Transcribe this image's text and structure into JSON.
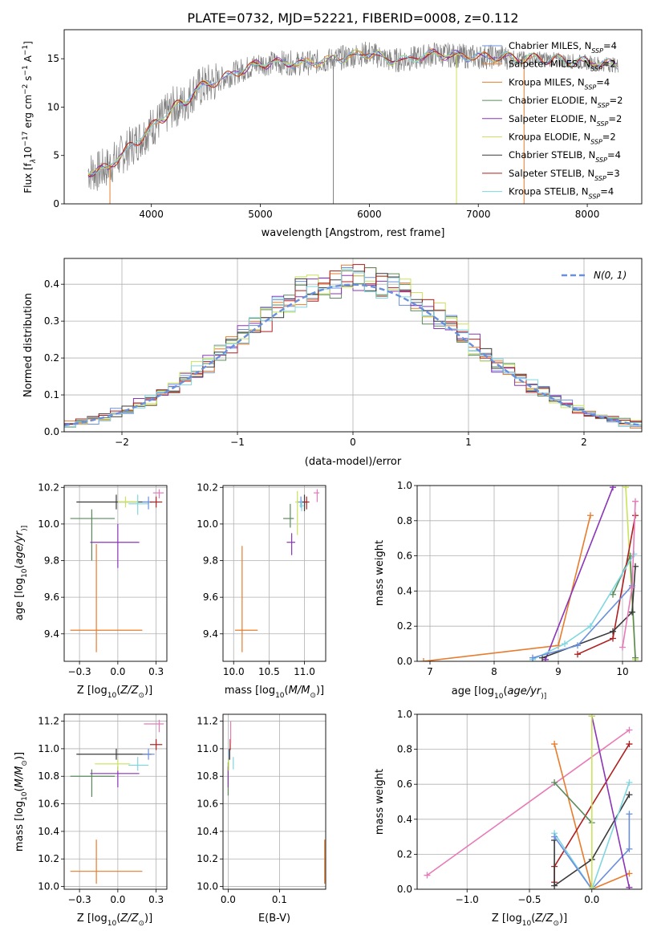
{
  "title": "PLATE=0732, MJD=52221, FIBERID=0008, z=0.112",
  "colors": {
    "cm": "#6a8fdc",
    "sm": "#e87b2c",
    "km": "#e87b2c",
    "ce": "#5a8a5a",
    "se": "#8b35b8",
    "ke": "#c9e35a",
    "cs": "#3a3a3a",
    "ss": "#b01f1f",
    "ks": "#7fd6e0",
    "data": "#808080",
    "pink": "#e87ab8",
    "gauss": "#6a8fdc"
  },
  "chart_data": [
    {
      "type": "line",
      "id": "spectrum",
      "xlabel": "wavelength [Angstrom, rest frame]",
      "ylabel": "Flux [f$_\\lambda$10$^{-17}$ erg cm$^{-2}$ s$^{-1}$ A$^{-1}$]",
      "xlim": [
        3200,
        8500
      ],
      "ylim": [
        0,
        18
      ],
      "xticks": [
        4000,
        5000,
        6000,
        7000,
        8000
      ],
      "yticks": [
        0,
        5,
        10,
        15
      ],
      "legend_position": "upper right",
      "legend": [
        {
          "label": "Chabrier MILES, N",
          "sub": "SSP",
          "tail": "=4",
          "color": "cm"
        },
        {
          "label": "Salpeter MILES, N",
          "sub": "SSP",
          "tail": "=2",
          "color": "sm"
        },
        {
          "label": "Kroupa MILES, N",
          "sub": "SSP",
          "tail": "=4",
          "color": "km"
        },
        {
          "label": "Chabrier ELODIE, N",
          "sub": "SSP",
          "tail": "=2",
          "color": "ce"
        },
        {
          "label": "Salpeter ELODIE, N",
          "sub": "SSP",
          "tail": "=2",
          "color": "se"
        },
        {
          "label": "Kroupa ELODIE, N",
          "sub": "SSP",
          "tail": "=2",
          "color": "ke"
        },
        {
          "label": "Chabrier STELIB, N",
          "sub": "SSP",
          "tail": "=4",
          "color": "cs"
        },
        {
          "label": "Salpeter STELIB, N",
          "sub": "SSP",
          "tail": "=3",
          "color": "ss"
        },
        {
          "label": "Kroupa STELIB, N",
          "sub": "SSP",
          "tail": "=4",
          "color": "ks"
        }
      ],
      "continuum": [
        [
          3400,
          3.4
        ],
        [
          3500,
          3.3
        ],
        [
          3600,
          3.8
        ],
        [
          3700,
          4.8
        ],
        [
          3800,
          5.8
        ],
        [
          3900,
          6.8
        ],
        [
          4000,
          7.9
        ],
        [
          4100,
          8.8
        ],
        [
          4200,
          10.0
        ],
        [
          4300,
          10.3
        ],
        [
          4400,
          11.8
        ],
        [
          4600,
          12.7
        ],
        [
          4800,
          13.7
        ],
        [
          5000,
          14.5
        ],
        [
          5200,
          14.6
        ],
        [
          5400,
          14.5
        ],
        [
          5600,
          14.8
        ],
        [
          5800,
          15.2
        ],
        [
          6000,
          15.6
        ],
        [
          6200,
          14.8
        ],
        [
          6400,
          15.0
        ],
        [
          6600,
          15.5
        ],
        [
          6800,
          15.3
        ],
        [
          7000,
          15.2
        ],
        [
          7200,
          15.2
        ],
        [
          7400,
          15.0
        ],
        [
          7600,
          15.0
        ],
        [
          7800,
          14.8
        ],
        [
          8000,
          14.6
        ],
        [
          8200,
          14.4
        ],
        [
          8300,
          14.3
        ]
      ]
    },
    {
      "type": "histogram",
      "id": "residuals",
      "xlabel": "(data-model)/error",
      "ylabel": "Normed distribution",
      "xlim": [
        -2.5,
        2.5
      ],
      "ylim": [
        0,
        0.47
      ],
      "xticks": [
        -2,
        -1,
        0,
        1,
        2
      ],
      "yticks": [
        0,
        0.1,
        0.2,
        0.3,
        0.4
      ],
      "bin_width": 0.1,
      "gaussian_label": "N(0,1)",
      "gaussian_mean": 0,
      "gaussian_sigma": 1,
      "legend_position": "upper right"
    },
    {
      "type": "scatter",
      "id": "age_vs_Z",
      "xlabel_parts": [
        "Z [log",
        "10",
        "(",
        "Z/Z",
        "⊙",
        ")]"
      ],
      "ylabel_parts": [
        "age  [log",
        "10",
        "(",
        "age/yr",
        ")]"
      ],
      "xlim": [
        -0.35,
        0.32
      ],
      "ylim": [
        9.25,
        10.21
      ],
      "xticks": [
        -0.25,
        0.0,
        0.25
      ],
      "yticks": [
        9.4,
        9.6,
        9.8,
        10.0,
        10.2
      ],
      "points": [
        {
          "x": -0.17,
          "y": 10.03,
          "xerr": [
            0.14,
            0.15
          ],
          "yerr": [
            0.23,
            0.05
          ],
          "color": "ce"
        },
        {
          "x": -0.01,
          "y": 10.12,
          "xerr": [
            0.26,
            0.23
          ],
          "yerr": [
            0.04,
            0.04
          ],
          "color": "cs"
        },
        {
          "x": 0.0,
          "y": 9.9,
          "xerr": [
            0.18,
            0.14
          ],
          "yerr": [
            0.14,
            0.1
          ],
          "color": "se"
        },
        {
          "x": -0.14,
          "y": 9.42,
          "xerr": [
            0.17,
            0.3
          ],
          "yerr": [
            0.12,
            0.47
          ],
          "color": "km"
        },
        {
          "x": 0.05,
          "y": 10.12,
          "xerr": [
            0.05,
            0.08
          ],
          "yerr": [
            0.03,
            0.03
          ],
          "color": "ke"
        },
        {
          "x": 0.13,
          "y": 10.11,
          "xerr": [
            0.06,
            0.07
          ],
          "yerr": [
            0.06,
            0.05
          ],
          "color": "ks"
        },
        {
          "x": 0.2,
          "y": 10.12,
          "xerr": [
            0.04,
            0.04
          ],
          "yerr": [
            0.04,
            0.03
          ],
          "color": "cm"
        },
        {
          "x": 0.25,
          "y": 10.12,
          "xerr": [
            0.04,
            0.04
          ],
          "yerr": [
            0.03,
            0.03
          ],
          "color": "ss"
        },
        {
          "x": 0.27,
          "y": 10.17,
          "xerr": [
            0.04,
            0.03
          ],
          "yerr": [
            0.03,
            0.02
          ],
          "color": "pink"
        }
      ]
    },
    {
      "type": "scatter",
      "id": "age_vs_mass",
      "xlabel_parts": [
        "mass [log",
        "10",
        "(",
        "M/M",
        "⊙",
        ")]"
      ],
      "ylabel_parts": [],
      "xlim": [
        9.85,
        11.3
      ],
      "ylim": [
        9.25,
        10.21
      ],
      "xticks": [
        10.0,
        10.5,
        11.0
      ],
      "yticks": [
        9.4,
        9.6,
        9.8,
        10.0,
        10.2
      ],
      "points": [
        {
          "x": 10.8,
          "y": 10.03,
          "xerr": [
            0.1,
            0.05
          ],
          "yerr": [
            0.05,
            0.08
          ],
          "color": "ce"
        },
        {
          "x": 10.82,
          "y": 9.9,
          "xerr": [
            0.07,
            0.05
          ],
          "yerr": [
            0.07,
            0.05
          ],
          "color": "se"
        },
        {
          "x": 10.9,
          "y": 10.12,
          "xerr": [
            0.03,
            0.03
          ],
          "yerr": [
            0.18,
            0.06
          ],
          "color": "ke"
        },
        {
          "x": 10.12,
          "y": 9.42,
          "xerr": [
            0.1,
            0.22
          ],
          "yerr": [
            0.12,
            0.46
          ],
          "color": "km"
        },
        {
          "x": 10.95,
          "y": 10.12,
          "xerr": [
            0.04,
            0.04
          ],
          "yerr": [
            0.03,
            0.03
          ],
          "color": "cm"
        },
        {
          "x": 11.0,
          "y": 10.12,
          "xerr": [
            0.04,
            0.04
          ],
          "yerr": [
            0.05,
            0.04
          ],
          "color": "cs"
        },
        {
          "x": 10.96,
          "y": 10.1,
          "xerr": [
            0.03,
            0.03
          ],
          "yerr": [
            0.03,
            0.03
          ],
          "color": "ks"
        },
        {
          "x": 11.03,
          "y": 10.12,
          "xerr": [
            0.04,
            0.04
          ],
          "yerr": [
            0.04,
            0.03
          ],
          "color": "ss"
        },
        {
          "x": 11.18,
          "y": 10.17,
          "xerr": [
            0.05,
            0.03
          ],
          "yerr": [
            0.05,
            0.02
          ],
          "color": "pink"
        }
      ]
    },
    {
      "type": "line",
      "id": "weight_vs_age",
      "xlabel_parts": [
        "age  [log",
        "10",
        "(",
        "age/yr",
        ")]"
      ],
      "ylabel": "mass weight",
      "xlim": [
        6.8,
        10.3
      ],
      "ylim": [
        0,
        1
      ],
      "xticks": [
        7,
        8,
        9,
        10
      ],
      "yticks": [
        0,
        0.2,
        0.4,
        0.6,
        0.8,
        1.0
      ],
      "series": [
        {
          "color": "km",
          "x": [
            6.9,
            9.0,
            9.5
          ],
          "y": [
            0.0,
            0.09,
            0.83
          ]
        },
        {
          "color": "se",
          "x": [
            8.8,
            9.85
          ],
          "y": [
            0.01,
            0.99
          ]
        },
        {
          "color": "ke",
          "x": [
            10.05,
            10.2
          ],
          "y": [
            0.99,
            0.01
          ]
        },
        {
          "color": "ce",
          "x": [
            9.85,
            10.12,
            10.2
          ],
          "y": [
            0.38,
            0.6,
            0.02
          ]
        },
        {
          "color": "ss",
          "x": [
            9.3,
            9.85,
            10.2
          ],
          "y": [
            0.04,
            0.13,
            0.83
          ]
        },
        {
          "color": "cs",
          "x": [
            8.75,
            9.85,
            10.15,
            10.2
          ],
          "y": [
            0.02,
            0.17,
            0.28,
            0.54
          ]
        },
        {
          "color": "ks",
          "x": [
            8.6,
            9.1,
            9.5,
            10.18
          ],
          "y": [
            0.01,
            0.1,
            0.2,
            0.61
          ]
        },
        {
          "color": "cm",
          "x": [
            8.6,
            9.3,
            10.15
          ],
          "y": [
            0.02,
            0.09,
            0.43
          ]
        },
        {
          "color": "pink",
          "x": [
            10.0,
            10.15,
            10.2
          ],
          "y": [
            0.08,
            0.42,
            0.91
          ]
        }
      ]
    },
    {
      "type": "scatter",
      "id": "mass_vs_Z",
      "xlabel_parts": [
        "Z [log",
        "10",
        "(",
        "Z/Z",
        "⊙",
        ")]"
      ],
      "ylabel_parts": [
        "mass [log",
        "10",
        "(",
        "M/M",
        "⊙",
        ")]"
      ],
      "xlim": [
        -0.35,
        0.32
      ],
      "ylim": [
        9.98,
        11.25
      ],
      "xticks": [
        -0.25,
        0.0,
        0.25
      ],
      "yticks": [
        10.0,
        10.2,
        10.4,
        10.6,
        10.8,
        11.0,
        11.2
      ],
      "points": [
        {
          "x": -0.17,
          "y": 10.8,
          "xerr": [
            0.14,
            0.15
          ],
          "yerr": [
            0.15,
            0.05
          ],
          "color": "ce"
        },
        {
          "x": -0.01,
          "y": 10.96,
          "xerr": [
            0.26,
            0.23
          ],
          "yerr": [
            0.04,
            0.04
          ],
          "color": "cs"
        },
        {
          "x": 0.0,
          "y": 10.82,
          "xerr": [
            0.18,
            0.14
          ],
          "yerr": [
            0.1,
            0.05
          ],
          "color": "se"
        },
        {
          "x": 0.0,
          "y": 10.89,
          "xerr": [
            0.15,
            0.08
          ],
          "yerr": [
            0.05,
            0.03
          ],
          "color": "ke"
        },
        {
          "x": -0.14,
          "y": 10.11,
          "xerr": [
            0.17,
            0.3
          ],
          "yerr": [
            0.09,
            0.23
          ],
          "color": "km"
        },
        {
          "x": 0.13,
          "y": 10.88,
          "xerr": [
            0.06,
            0.07
          ],
          "yerr": [
            0.04,
            0.06
          ],
          "color": "ks"
        },
        {
          "x": 0.2,
          "y": 10.96,
          "xerr": [
            0.04,
            0.04
          ],
          "yerr": [
            0.04,
            0.04
          ],
          "color": "cm"
        },
        {
          "x": 0.25,
          "y": 11.03,
          "xerr": [
            0.04,
            0.04
          ],
          "yerr": [
            0.04,
            0.04
          ],
          "color": "ss"
        },
        {
          "x": 0.27,
          "y": 11.18,
          "xerr": [
            0.1,
            0.03
          ],
          "yerr": [
            0.06,
            0.03
          ],
          "color": "pink"
        }
      ]
    },
    {
      "type": "scatter",
      "id": "mass_vs_EBV",
      "xlabel": "E(B-V)",
      "xlim": [
        -0.01,
        0.19
      ],
      "ylim": [
        9.98,
        11.25
      ],
      "xticks": [
        0.0,
        0.1
      ],
      "yticks": [
        10.0,
        10.2,
        10.4,
        10.6,
        10.8,
        11.0,
        11.2
      ],
      "points": [
        {
          "x": 0.0,
          "y": 10.8,
          "xerr": [
            0,
            0
          ],
          "yerr": [
            0.14,
            0.1
          ],
          "color": "ce"
        },
        {
          "x": 0.0,
          "y": 10.82,
          "xerr": [
            0,
            0
          ],
          "yerr": [
            0.1,
            0.05
          ],
          "color": "se"
        },
        {
          "x": 0.001,
          "y": 10.89,
          "xerr": [
            0,
            0
          ],
          "yerr": [
            0.05,
            0.04
          ],
          "color": "ke"
        },
        {
          "x": 0.002,
          "y": 10.96,
          "xerr": [
            0,
            0
          ],
          "yerr": [
            0.04,
            0.04
          ],
          "color": "cm"
        },
        {
          "x": 0.003,
          "y": 10.96,
          "xerr": [
            0,
            0
          ],
          "yerr": [
            0.04,
            0.04
          ],
          "color": "cs"
        },
        {
          "x": 0.004,
          "y": 11.03,
          "xerr": [
            0,
            0
          ],
          "yerr": [
            0.04,
            0.04
          ],
          "color": "ss"
        },
        {
          "x": 0.005,
          "y": 11.1,
          "xerr": [
            0,
            0
          ],
          "yerr": [
            0.06,
            0.1
          ],
          "color": "pink"
        },
        {
          "x": 0.01,
          "y": 10.9,
          "xerr": [
            0,
            0
          ],
          "yerr": [
            0.05,
            0.04
          ],
          "color": "ks"
        },
        {
          "x": 0.188,
          "y": 10.18,
          "xerr": [
            0,
            0
          ],
          "yerr": [
            0.16,
            0.16
          ],
          "color": "km"
        }
      ]
    },
    {
      "type": "line",
      "id": "weight_vs_Z",
      "xlabel_parts": [
        "Z [log",
        "10",
        "(",
        "Z/Z",
        "⊙",
        ")]"
      ],
      "ylabel": "mass weight",
      "xlim": [
        -1.4,
        0.4
      ],
      "ylim": [
        0,
        1
      ],
      "xticks": [
        -1.0,
        -0.5,
        0.0
      ],
      "yticks": [
        0,
        0.2,
        0.4,
        0.6,
        0.8,
        1.0
      ],
      "series": [
        {
          "color": "pink",
          "x": [
            -1.32,
            0.3
          ],
          "y": [
            0.08,
            0.91
          ]
        },
        {
          "color": "km",
          "x": [
            -0.3,
            0.0,
            0.3
          ],
          "y": [
            0.83,
            0.0,
            0.09
          ]
        },
        {
          "color": "ss",
          "x": [
            -0.3,
            -0.3,
            0.3
          ],
          "y": [
            0.04,
            0.13,
            0.83
          ]
        },
        {
          "color": "cs",
          "x": [
            -0.3,
            -0.3,
            0.0,
            0.3
          ],
          "y": [
            0.28,
            0.02,
            0.17,
            0.54
          ]
        },
        {
          "color": "ce",
          "x": [
            -0.3,
            0.0
          ],
          "y": [
            0.61,
            0.38
          ]
        },
        {
          "color": "ks",
          "x": [
            -0.3,
            0.0,
            0.3
          ],
          "y": [
            0.32,
            0.0,
            0.61
          ]
        },
        {
          "color": "cm",
          "x": [
            -0.3,
            0.0,
            0.3,
            0.3
          ],
          "y": [
            0.3,
            0.0,
            0.23,
            0.43
          ]
        },
        {
          "color": "se",
          "x": [
            0.0,
            0.3
          ],
          "y": [
            0.99,
            0.01
          ]
        },
        {
          "color": "ke",
          "x": [
            0.0,
            0.0
          ],
          "y": [
            0.99,
            0.01
          ]
        }
      ]
    }
  ]
}
